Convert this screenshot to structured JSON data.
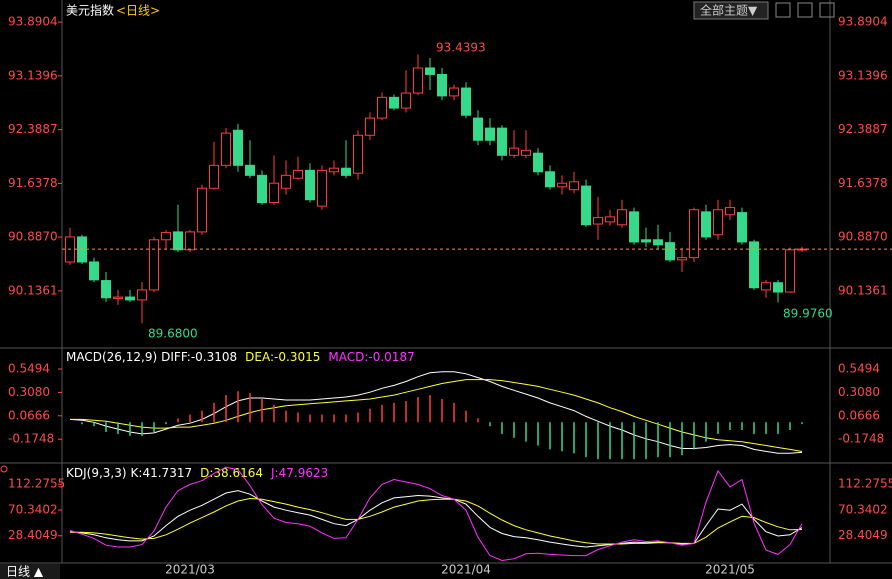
{
  "toolbar": {
    "theme_button": "全部主题▼"
  },
  "footer": {
    "period": "日线 ▲"
  },
  "chart_data": [
    {
      "type": "candlestick",
      "title": "美元指数",
      "subtitle": "<日线>",
      "categories": [
        null,
        null,
        null,
        null,
        null,
        null,
        null,
        null,
        null,
        null,
        "2021/03",
        null,
        null,
        null,
        null,
        null,
        null,
        null,
        null,
        null,
        null,
        null,
        null,
        null,
        null,
        null,
        null,
        null,
        null,
        null,
        null,
        null,
        null,
        "2021/04",
        null,
        null,
        null,
        null,
        null,
        null,
        null,
        null,
        null,
        null,
        null,
        null,
        null,
        null,
        null,
        null,
        null,
        null,
        null,
        null,
        null,
        "2021/05",
        null,
        null,
        null,
        null,
        null,
        null
      ],
      "open": [
        90.54,
        90.89,
        90.54,
        90.28,
        90.03,
        90.05,
        90.01,
        90.15,
        90.85,
        90.96,
        90.71,
        90.96,
        91.57,
        91.89,
        92.38,
        91.89,
        91.75,
        91.37,
        91.57,
        91.71,
        91.82,
        91.32,
        91.8,
        91.85,
        91.78,
        92.31,
        92.55,
        92.84,
        92.69,
        92.9,
        93.25,
        93.16,
        92.86,
        92.97,
        92.55,
        92.41,
        92.41,
        92.03,
        92.03,
        92.06,
        91.8,
        91.59,
        91.55,
        91.6,
        91.07,
        91.1,
        91.06,
        91.24,
        90.85,
        90.85,
        90.81,
        90.57,
        90.6,
        91.24,
        90.92,
        91.2,
        91.23,
        90.82,
        90.15,
        90.25,
        90.12,
        90.71
      ],
      "high": [
        91.02,
        90.92,
        90.6,
        90.4,
        90.15,
        90.15,
        90.26,
        90.89,
        90.99,
        91.34,
        90.99,
        91.62,
        92.22,
        92.41,
        92.47,
        92.24,
        91.82,
        92.03,
        91.96,
        92.01,
        91.92,
        91.89,
        91.96,
        92.24,
        92.38,
        92.63,
        92.91,
        92.88,
        93.22,
        93.4393,
        93.39,
        93.25,
        93.02,
        93.05,
        92.66,
        92.55,
        92.45,
        92.38,
        92.38,
        92.13,
        91.89,
        91.75,
        91.8,
        91.69,
        91.45,
        91.27,
        91.41,
        91.3,
        91.02,
        91.06,
        90.96,
        90.74,
        91.3,
        91.34,
        91.41,
        91.41,
        91.3,
        90.85,
        90.29,
        90.29,
        90.74,
        90.75
      ],
      "low": [
        90.5,
        90.51,
        90.26,
        89.98,
        89.94,
        89.98,
        89.68,
        90.12,
        90.71,
        90.68,
        90.68,
        90.92,
        91.55,
        91.85,
        91.8,
        91.71,
        91.34,
        91.34,
        91.48,
        91.69,
        91.37,
        91.27,
        91.75,
        91.71,
        91.69,
        92.24,
        92.52,
        92.66,
        92.63,
        92.87,
        92.94,
        92.8,
        92.8,
        92.55,
        92.17,
        92.17,
        91.96,
        91.99,
        91.99,
        91.75,
        91.55,
        91.48,
        91.5,
        91.03,
        90.85,
        91.05,
        91.02,
        90.78,
        90.75,
        90.71,
        90.54,
        90.4,
        90.54,
        90.85,
        90.85,
        91.13,
        90.78,
        90.15,
        90.04,
        89.976,
        90.11,
        90.68
      ],
      "close": [
        90.89,
        90.54,
        90.29,
        90.04,
        90.05,
        90.01,
        90.15,
        90.85,
        90.95,
        90.71,
        90.96,
        91.57,
        91.89,
        92.34,
        91.89,
        91.75,
        91.37,
        91.64,
        91.75,
        91.82,
        91.41,
        91.82,
        91.85,
        91.75,
        92.31,
        92.55,
        92.84,
        92.69,
        92.9,
        93.25,
        93.16,
        92.86,
        92.97,
        92.59,
        92.24,
        92.24,
        92.03,
        92.13,
        92.1,
        91.8,
        91.59,
        91.64,
        91.66,
        91.06,
        91.16,
        91.17,
        91.27,
        90.82,
        90.82,
        90.78,
        90.57,
        90.6,
        91.27,
        90.89,
        91.27,
        91.3,
        90.82,
        90.18,
        90.25,
        90.12,
        90.71,
        90.72
      ],
      "up_color": "#ff3b3b",
      "down_color": "#36d98a",
      "ylim": [
        89.38,
        94.13
      ],
      "yticks": [
        93.8904,
        93.1396,
        92.3887,
        91.6378,
        {
          "value": 90.887,
          "label": "90.8870"
        },
        90.1361
      ],
      "annotations": [
        "93.4393",
        "89.6800",
        "89.9760"
      ]
    },
    {
      "type": "macd",
      "title": "MACD(26,12,9)",
      "series": [
        {
          "name": "DIFF:",
          "color": "#ffffff",
          "values": [
            0.03,
            0.02,
            0.0,
            -0.04,
            -0.07,
            -0.1,
            -0.12,
            -0.11,
            -0.07,
            -0.03,
            -0.01,
            0.03,
            0.09,
            0.16,
            0.22,
            0.25,
            0.25,
            0.24,
            0.23,
            0.23,
            0.23,
            0.24,
            0.25,
            0.26,
            0.28,
            0.31,
            0.35,
            0.38,
            0.42,
            0.47,
            0.51,
            0.52,
            0.52,
            0.5,
            0.46,
            0.42,
            0.37,
            0.33,
            0.29,
            0.25,
            0.2,
            0.16,
            0.12,
            0.06,
            0.01,
            -0.04,
            -0.08,
            -0.13,
            -0.17,
            -0.2,
            -0.24,
            -0.27,
            -0.27,
            -0.26,
            -0.24,
            -0.23,
            -0.24,
            -0.28,
            -0.3,
            -0.32,
            -0.32,
            -0.3108
          ]
        },
        {
          "name": "DEA:",
          "color": "#ffff33",
          "values": [
            0.03,
            0.03,
            0.02,
            0.01,
            -0.01,
            -0.03,
            -0.05,
            -0.06,
            -0.06,
            -0.05,
            -0.05,
            -0.03,
            -0.01,
            0.02,
            0.06,
            0.1,
            0.13,
            0.15,
            0.17,
            0.18,
            0.19,
            0.2,
            0.21,
            0.22,
            0.23,
            0.24,
            0.26,
            0.28,
            0.31,
            0.34,
            0.37,
            0.4,
            0.42,
            0.44,
            0.44,
            0.44,
            0.43,
            0.41,
            0.39,
            0.37,
            0.34,
            0.31,
            0.28,
            0.24,
            0.2,
            0.15,
            0.11,
            0.06,
            0.02,
            -0.02,
            -0.06,
            -0.1,
            -0.13,
            -0.16,
            -0.18,
            -0.19,
            -0.2,
            -0.22,
            -0.24,
            -0.26,
            -0.28,
            -0.3015
          ]
        },
        {
          "name": "MACD:",
          "color": "#ff33ff",
          "values": [
            0,
            -0.02,
            -0.04,
            -0.1,
            -0.12,
            -0.14,
            -0.14,
            -0.1,
            -0.02,
            0.04,
            0.08,
            0.12,
            0.2,
            0.28,
            0.32,
            0.3,
            0.24,
            0.18,
            0.12,
            0.1,
            0.08,
            0.08,
            0.08,
            0.08,
            0.1,
            0.14,
            0.18,
            0.2,
            0.22,
            0.26,
            0.28,
            0.24,
            0.2,
            0.12,
            0.04,
            -0.04,
            -0.12,
            -0.16,
            -0.2,
            -0.24,
            -0.28,
            -0.3,
            -0.32,
            -0.36,
            -0.38,
            -0.38,
            -0.38,
            -0.38,
            -0.38,
            -0.36,
            -0.36,
            -0.34,
            -0.28,
            -0.2,
            -0.12,
            -0.08,
            -0.08,
            -0.12,
            -0.12,
            -0.12,
            -0.08,
            -0.0187
          ]
        }
      ],
      "up_color": "#ff3b3b",
      "down_color": "#36d98a",
      "ylim": [
        -0.42,
        0.745
      ],
      "yticks": [
        0.5494,
        {
          "value": 0.308,
          "label": "0.3080"
        },
        0.0666,
        -0.1748
      ]
    },
    {
      "type": "line",
      "title": "KDJ(9,3,3)",
      "series": [
        {
          "name": "K:",
          "color": "#ffffff",
          "values": [
            35,
            33,
            30,
            25,
            22,
            20,
            20,
            28,
            45,
            60,
            70,
            78,
            88,
            98,
            102,
            96,
            85,
            75,
            70,
            66,
            62,
            55,
            48,
            45,
            55,
            70,
            82,
            90,
            92,
            94,
            93,
            90,
            88,
            80,
            60,
            42,
            32,
            27,
            25,
            22,
            18,
            15,
            12,
            10,
            12,
            14,
            16,
            18,
            17,
            18,
            17,
            15,
            16,
            45,
            72,
            70,
            80,
            55,
            35,
            28,
            30,
            41.7317
          ]
        },
        {
          "name": "D:",
          "color": "#ffff33",
          "values": [
            34,
            34,
            33,
            31,
            28,
            25,
            23,
            24,
            30,
            39,
            49,
            58,
            67,
            77,
            85,
            89,
            88,
            84,
            80,
            75,
            71,
            66,
            60,
            55,
            55,
            60,
            67,
            75,
            80,
            85,
            87,
            88,
            88,
            85,
            77,
            65,
            54,
            45,
            38,
            33,
            28,
            24,
            20,
            17,
            15,
            15,
            15,
            16,
            16,
            17,
            17,
            16,
            16,
            26,
            41,
            51,
            60,
            58,
            50,
            43,
            38,
            38.6164
          ]
        },
        {
          "name": "J:",
          "color": "#ff33ff",
          "values": [
            37,
            31,
            24,
            13,
            10,
            10,
            14,
            36,
            75,
            102,
            112,
            118,
            130,
            140,
            136,
            110,
            79,
            57,
            50,
            48,
            44,
            33,
            24,
            25,
            55,
            90,
            112,
            120,
            116,
            112,
            105,
            94,
            88,
            70,
            26,
            -4,
            -12,
            -9,
            -1,
            0,
            -2,
            -3,
            -4,
            -4,
            6,
            12,
            18,
            22,
            19,
            20,
            17,
            13,
            16,
            83,
            134,
            108,
            120,
            49,
            5,
            -2,
            14,
            47.9623
          ]
        }
      ],
      "ylim": [
        -16,
        142
      ],
      "yticks": [
        112.2755,
        70.3402,
        28.4049
      ]
    }
  ]
}
